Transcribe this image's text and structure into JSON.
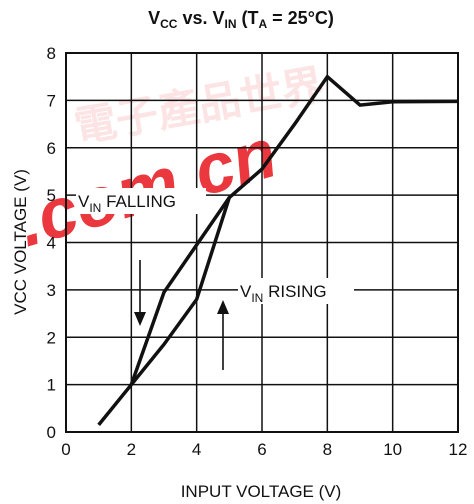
{
  "chart_data": {
    "type": "line",
    "title": {
      "v": "V",
      "cc": "CC",
      "mid": " vs. V",
      "in": "IN",
      "paren": " (T",
      "a": "A",
      "end": " = 25°C)"
    },
    "xlabel": "INPUT VOLTAGE  (V)",
    "ylabel": "VCC VOLTAGE  (V)",
    "xlim": [
      0,
      12
    ],
    "ylim": [
      0,
      8
    ],
    "xticks": [
      "0",
      "2",
      "4",
      "6",
      "8",
      "10",
      "12"
    ],
    "yticks": [
      "0",
      "1",
      "2",
      "3",
      "4",
      "5",
      "6",
      "7",
      "8"
    ],
    "grid": true,
    "series": [
      {
        "name": "VIN FALLING",
        "x": [
          2,
          3,
          4,
          5
        ],
        "y": [
          1.0,
          2.95,
          3.95,
          4.95
        ]
      },
      {
        "name": "VIN RISING",
        "x": [
          1,
          2,
          3,
          4,
          5,
          6,
          7,
          8,
          9,
          10,
          12
        ],
        "y": [
          0.15,
          1.0,
          1.85,
          2.8,
          4.95,
          5.55,
          6.5,
          7.5,
          6.9,
          6.97,
          6.98
        ]
      }
    ],
    "annotations": {
      "falling": {
        "v": "V",
        "sub": "IN",
        "text": " FALLING"
      },
      "rising": {
        "v": "V",
        "sub": "IN",
        "text": " RISING"
      }
    },
    "watermark": {
      "text": ".com.cn",
      "chinese": "電子產品世界",
      "color": "#e8232a"
    }
  }
}
